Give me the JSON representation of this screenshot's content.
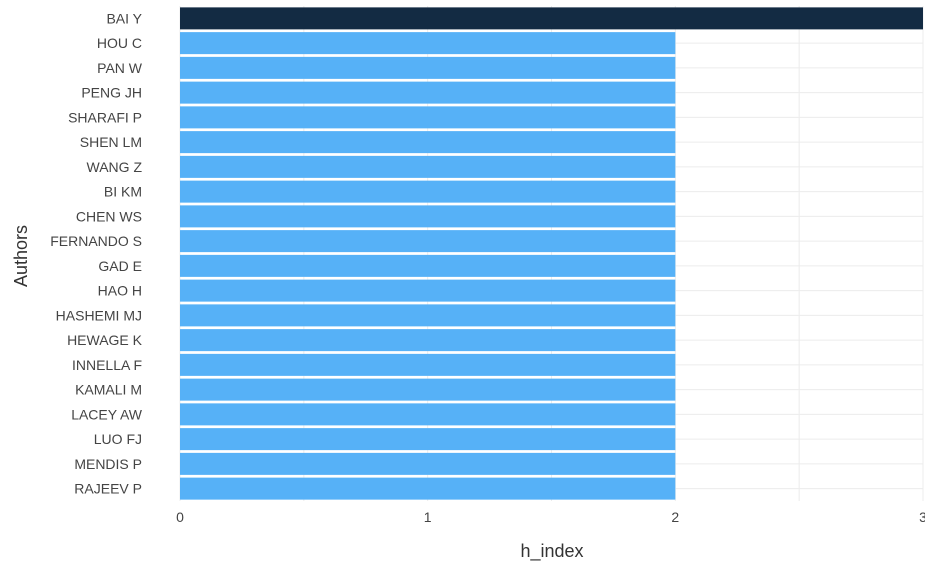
{
  "chart_data": {
    "type": "bar",
    "orientation": "horizontal",
    "title": "",
    "xlabel": "h_index",
    "ylabel": "Authors",
    "xlim": [
      0,
      3
    ],
    "x_ticks": [
      0,
      1,
      2,
      3
    ],
    "grid": true,
    "categories": [
      "BAI Y",
      "HOU C",
      "PAN W",
      "PENG JH",
      "SHARAFI P",
      "SHEN LM",
      "WANG Z",
      "BI KM",
      "CHEN WS",
      "FERNANDO S",
      "GAD E",
      "HAO H",
      "HASHEMI MJ",
      "HEWAGE K",
      "INNELLA F",
      "KAMALI M",
      "LACEY AW",
      "LUO FJ",
      "MENDIS P",
      "RAJEEV P"
    ],
    "values": [
      3,
      2,
      2,
      2,
      2,
      2,
      2,
      2,
      2,
      2,
      2,
      2,
      2,
      2,
      2,
      2,
      2,
      2,
      2,
      2
    ],
    "colors": {
      "highlight": "#132b43",
      "default": "#56b1f7"
    }
  }
}
